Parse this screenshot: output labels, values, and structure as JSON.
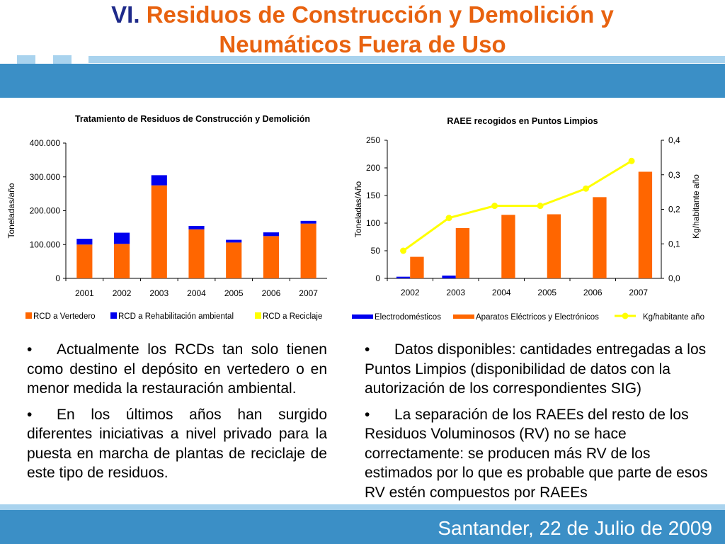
{
  "slide": {
    "title_roman": "VI.",
    "title_line1": "Residuos de Construcción y Demolición y",
    "title_line2": "Neumáticos Fuera de Uso",
    "footer": "Santander, 22 de Julio de 2009"
  },
  "text_left": [
    "Actualmente los RCDs tan solo tienen como destino el depósito en vertedero o en menor medida la restauración ambiental.",
    "En los últimos años han surgido diferentes iniciativas a nivel privado para la puesta en marcha de plantas de reciclaje de este tipo de residuos."
  ],
  "text_right": [
    "Datos disponibles: cantidades entregadas a los Puntos Limpios (disponibilidad de datos con la autorización de los correspondientes SIG)",
    "La separación de los RAEEs del resto de los Residuos Voluminosos (RV) no se hace correctamente: se producen más RV de los estimados por lo que es probable que parte de esos RV estén compuestos por RAEEs"
  ],
  "bullet": "•",
  "colors": {
    "title": "#e8620f",
    "roman": "#1e2a8a",
    "band": "#3b8fc6",
    "band_light": "#a9d3ee",
    "orange": "#ff6600",
    "blue": "#0000ee",
    "yellow": "#ffff00"
  },
  "chart_data": [
    {
      "type": "bar",
      "stacked": true,
      "title": "Tratamiento de Residuos de Construcción y Demolición",
      "ylabel": "Toneladas/año",
      "categories": [
        "2001",
        "2002",
        "2003",
        "2004",
        "2005",
        "2006",
        "2007"
      ],
      "ylim": [
        0,
        400000
      ],
      "yticks": [
        0,
        100000,
        200000,
        300000,
        400000
      ],
      "yticklabels": [
        "0",
        "100.000",
        "200.000",
        "300.000",
        "400.000"
      ],
      "series": [
        {
          "name": "RCD a Vertedero",
          "color": "#ff6600",
          "values": [
            100000,
            102000,
            275000,
            145000,
            106000,
            125000,
            162000
          ]
        },
        {
          "name": "RCD a Rehabilitación ambiental",
          "color": "#0000ee",
          "values": [
            17000,
            33000,
            30000,
            10000,
            8000,
            11000,
            8000
          ]
        },
        {
          "name": "RCD a Reciclaje",
          "color": "#ffff00",
          "values": [
            0,
            0,
            0,
            0,
            0,
            0,
            0
          ]
        }
      ],
      "legend": "bottom"
    },
    {
      "type": "bar",
      "title": "RAEE recogidos en Puntos Limpios",
      "ylabel": "Toneladas/Año",
      "y2label": "Kg/habitante año",
      "categories": [
        "2002",
        "2003",
        "2004",
        "2005",
        "2006",
        "2007"
      ],
      "ylim": [
        0,
        250
      ],
      "yticks": [
        0,
        50,
        100,
        150,
        200,
        250
      ],
      "yticklabels": [
        "0",
        "50",
        "100",
        "150",
        "200",
        "250"
      ],
      "y2lim": [
        0,
        0.4
      ],
      "y2ticks": [
        0,
        0.1,
        0.2,
        0.3,
        0.4
      ],
      "y2ticklabels": [
        "0,0",
        "0,1",
        "0,2",
        "0,3",
        "0,4"
      ],
      "series": [
        {
          "name": "Electrodomésticos",
          "color": "#0000ee",
          "type": "bar",
          "values": [
            3,
            5,
            0,
            0,
            0,
            0
          ]
        },
        {
          "name": "Aparatos Eléctricos y Electrónicos",
          "color": "#ff6600",
          "type": "bar",
          "values": [
            39,
            91,
            115,
            116,
            147,
            193
          ]
        },
        {
          "name": "Kg/habitante año",
          "color": "#ffff00",
          "type": "line",
          "axis": "y2",
          "values": [
            0.08,
            0.175,
            0.21,
            0.21,
            0.26,
            0.34
          ]
        }
      ],
      "legend": "bottom"
    }
  ]
}
